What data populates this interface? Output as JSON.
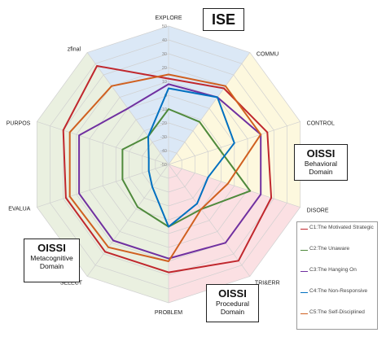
{
  "chart_data": {
    "type": "radar",
    "axes": [
      "EXPLORE",
      "COMMU",
      "CONTROL",
      "DISORE",
      "TRI&ERR",
      "PROBLEM",
      "SELECT",
      "EVALUA",
      "PURPOS",
      "zfinal"
    ],
    "rlim": [
      -50,
      50
    ],
    "ticks": [
      "50",
      "40",
      "30",
      "20",
      "10",
      "0",
      "-10",
      "-20",
      "-30",
      "-40",
      "-50"
    ],
    "tick_values": [
      50,
      40,
      30,
      20,
      10,
      0,
      -10,
      -20,
      -30,
      -40,
      -50
    ],
    "grid": true,
    "legend_position": "bottom-right",
    "series": [
      {
        "name": "C1:The Motivated Strategic",
        "color": "#c0272d",
        "values": [
          12,
          18,
          25,
          28,
          36,
          28,
          28,
          28,
          30,
          38
        ]
      },
      {
        "name": "C2:The Unaware",
        "color": "#4f8a3c",
        "values": [
          -10,
          -12,
          -12,
          12,
          -10,
          -5,
          -12,
          -15,
          -15,
          -25
        ]
      },
      {
        "name": "C3:The Hanging On",
        "color": "#7030a0",
        "values": [
          8,
          10,
          20,
          20,
          20,
          18,
          18,
          18,
          18,
          0
        ]
      },
      {
        "name": "C4:The Non-Responsive",
        "color": "#0070c0",
        "values": [
          5,
          10,
          0,
          -20,
          -15,
          -5,
          -30,
          -35,
          -35,
          -25
        ]
      },
      {
        "name": "C5:The Self-Disciplined",
        "color": "#d06020",
        "values": [
          15,
          20,
          20,
          -5,
          -10,
          20,
          24,
          25,
          25,
          20
        ]
      }
    ]
  },
  "domains": {
    "ise": {
      "title": "ISE",
      "color": "#dbe8f6",
      "axes": [
        9,
        0,
        1
      ]
    },
    "behavioral": {
      "title": "OISSI",
      "subtitle": "Behavioral Domain",
      "color": "#fdf8de",
      "axes": [
        1,
        2,
        3
      ]
    },
    "procedural": {
      "title": "OISSI",
      "subtitle": "Procedural Domain",
      "color": "#fbe0e3",
      "axes": [
        3,
        4,
        5
      ]
    },
    "metacognitive": {
      "title": "OISSI",
      "subtitle": "Metacognitive Domain",
      "color": "#eaf0e0",
      "axes": [
        5,
        6,
        7,
        8,
        9
      ]
    }
  }
}
